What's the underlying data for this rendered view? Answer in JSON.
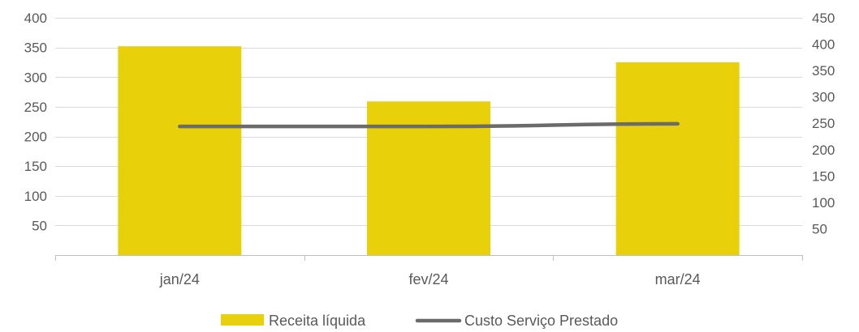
{
  "chart_data": {
    "type": "bar",
    "categories": [
      "jan/24",
      "fev/24",
      "mar/24"
    ],
    "series": [
      {
        "name": "Receita líquida",
        "kind": "bar",
        "axis": "left",
        "color": "#E8D00A",
        "values": [
          352,
          259,
          325
        ]
      },
      {
        "name": "Custo Serviço Prestado",
        "kind": "line",
        "axis": "right",
        "color": "#6B6B6B",
        "values": [
          244,
          244,
          249
        ]
      }
    ],
    "y_left": {
      "min": 0,
      "max": 400,
      "step": 50,
      "ticks": [
        "50",
        "100",
        "150",
        "200",
        "250",
        "300",
        "350",
        "400"
      ]
    },
    "y_right": {
      "min": 0,
      "max": 450,
      "step": 50,
      "ticks": [
        "50",
        "100",
        "150",
        "200",
        "250",
        "300",
        "350",
        "400",
        "450"
      ]
    },
    "grid": true,
    "legend_position": "bottom"
  }
}
